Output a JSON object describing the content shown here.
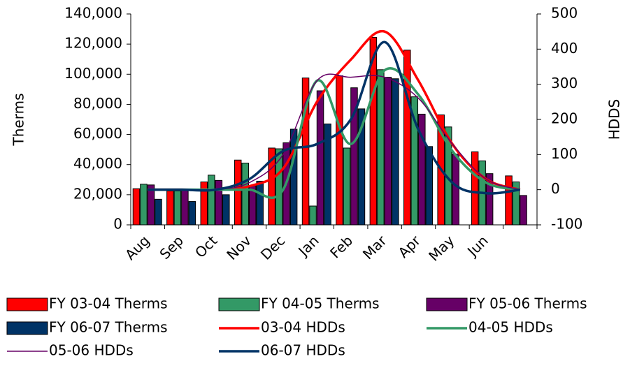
{
  "chart_data": {
    "type": "bar",
    "y_label": "Therms",
    "y2_label": "HDDS",
    "categories": [
      "Aug",
      "Sep",
      "Oct",
      "Nov",
      "Dec",
      "Jan",
      "Feb",
      "Mar",
      "Apr",
      "May",
      "Jun",
      null
    ],
    "ylim": [
      0,
      140000
    ],
    "yticks": [
      0,
      {
        "value": 20000,
        "label": "20,000"
      },
      {
        "value": 40000,
        "label": "40,000"
      },
      {
        "value": 60000,
        "label": "60,000"
      },
      {
        "value": 80000,
        "label": "80,000"
      },
      {
        "value": 100000,
        "label": "100,000"
      },
      {
        "value": 120000,
        "label": "120,000"
      },
      {
        "value": 140000,
        "label": "140,000"
      }
    ],
    "y2lim": [
      -100,
      500
    ],
    "y2ticks": [
      -100,
      0,
      100,
      200,
      300,
      400,
      500
    ],
    "series": [
      {
        "name": "FY 03-04 Therms",
        "type": "bar",
        "color": "#ff0000",
        "values": [
          24000,
          22500,
          28500,
          43000,
          51000,
          97500,
          99000,
          124500,
          116000,
          73000,
          48500,
          32500
        ]
      },
      {
        "name": "FY 04-05 Therms",
        "type": "bar",
        "color": "#339966",
        "values": [
          27000,
          22500,
          33000,
          41000,
          50500,
          12500,
          51000,
          103000,
          85000,
          65000,
          42500,
          28500
        ]
      },
      {
        "name": "FY 05-06 Therms",
        "type": "bar",
        "color": "#660066",
        "values": [
          26500,
          23000,
          29500,
          26000,
          54500,
          89000,
          91000,
          98000,
          73500,
          47000,
          34000,
          19500
        ]
      },
      {
        "name": "FY 06-07 Therms",
        "type": "bar",
        "color": "#003366",
        "values": [
          17000,
          15500,
          20000,
          29000,
          63500,
          67000,
          77000,
          97000,
          52000,
          null,
          null,
          null
        ]
      },
      {
        "name": "03-04 HDDs",
        "type": "line",
        "axis": "y2",
        "color": "#ff0000",
        "values": [
          0,
          0,
          0,
          10,
          60,
          250,
          370,
          450,
          310,
          130,
          30,
          0
        ]
      },
      {
        "name": "04-05 HDDs",
        "type": "line",
        "axis": "y2",
        "color": "#339966",
        "values": [
          0,
          0,
          0,
          0,
          0,
          310,
          130,
          340,
          270,
          110,
          20,
          0
        ]
      },
      {
        "name": "05-06 HDDs",
        "type": "line",
        "axis": "y2",
        "color": "#660066",
        "values": [
          0,
          0,
          0,
          20,
          100,
          310,
          320,
          320,
          260,
          130,
          30,
          0
        ]
      },
      {
        "name": "06-07 HDDs",
        "type": "line",
        "axis": "y2",
        "color": "#003366",
        "values": [
          0,
          0,
          0,
          30,
          110,
          130,
          200,
          420,
          170,
          20,
          -10,
          0
        ]
      }
    ]
  }
}
